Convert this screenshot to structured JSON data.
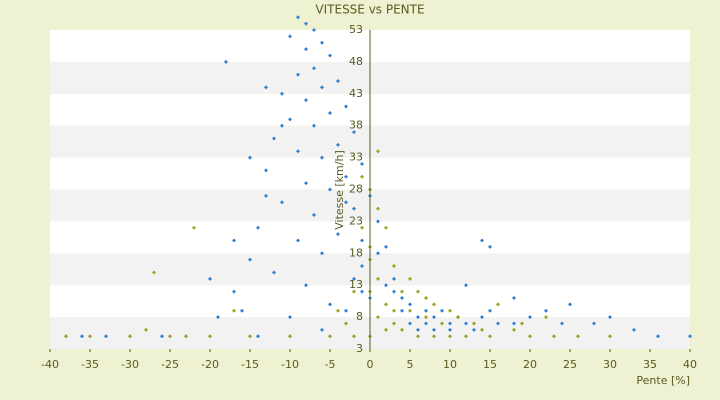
{
  "chart_data": {
    "type": "scatter",
    "title": "VITESSE vs PENTE",
    "x_label": "Pente [%]",
    "y_label": "Vitesse [km/h]",
    "xlim": [
      -40,
      40
    ],
    "xticks": [
      -40,
      -35,
      -30,
      -25,
      -20,
      -15,
      -10,
      -5,
      0,
      5,
      10,
      15,
      20,
      25,
      30,
      35,
      40
    ],
    "ylim": [
      3,
      53
    ],
    "yticks": [
      3,
      8,
      13,
      18,
      23,
      28,
      33,
      38,
      43,
      48,
      53
    ],
    "grid_bands": true,
    "background": "#eef2d2",
    "band_color": "#f2f2f2",
    "axis_color": "#5a5a20",
    "series": [
      {
        "color": "#2f80d0",
        "x": [
          -9,
          -8,
          -7,
          -10,
          -6,
          -8,
          -5,
          -7,
          -9,
          -4,
          -6,
          -11,
          -8,
          -3,
          -5,
          -10,
          -7,
          -2,
          -12,
          -4,
          -9,
          -6,
          -1,
          -13,
          -3,
          -8,
          -5,
          0,
          -11,
          -2,
          -7,
          1,
          -14,
          -4,
          -9,
          2,
          -6,
          -15,
          -1,
          -12,
          3,
          -8,
          -17,
          0,
          -5,
          -16,
          4,
          -10,
          6,
          8,
          10,
          12,
          -3,
          -1,
          1,
          -2,
          3,
          5,
          7,
          9,
          11,
          14,
          16,
          18,
          20,
          22,
          25,
          24,
          28,
          30,
          33,
          36,
          40,
          -18,
          -13,
          -11,
          -15,
          -13,
          -17,
          -20,
          -19,
          -23,
          -30,
          -36,
          -38,
          -33,
          -26,
          6,
          8,
          10,
          13,
          5,
          7,
          15,
          18,
          12,
          15,
          14,
          4,
          2,
          -1,
          -3,
          -6,
          -10,
          -14
        ],
        "values": [
          55,
          54,
          53,
          52,
          51,
          50,
          49,
          47,
          46,
          45,
          44,
          43,
          42,
          41,
          40,
          39,
          38,
          37,
          36,
          35,
          34,
          33,
          32,
          31,
          30,
          29,
          28,
          27,
          26,
          25,
          24,
          23,
          22,
          21,
          20,
          19,
          18,
          17,
          16,
          15,
          14,
          13,
          12,
          11,
          10,
          9,
          9,
          8,
          8,
          8,
          7,
          7,
          26,
          20,
          18,
          14,
          12,
          10,
          9,
          9,
          8,
          8,
          7,
          7,
          8,
          9,
          10,
          7,
          7,
          8,
          6,
          5,
          5,
          48,
          44,
          38,
          33,
          27,
          20,
          14,
          8,
          5,
          5,
          5,
          5,
          5,
          5,
          6,
          6,
          6,
          6,
          7,
          7,
          9,
          11,
          13,
          19,
          20,
          11,
          13,
          12,
          9,
          6,
          5,
          5
        ]
      },
      {
        "color": "#a3a020",
        "x": [
          0,
          -2,
          -5,
          -10,
          -15,
          -20,
          -25,
          -30,
          -35,
          -38,
          2,
          4,
          6,
          8,
          10,
          12,
          15,
          18,
          20,
          23,
          26,
          30,
          1,
          3,
          5,
          7,
          9,
          11,
          2,
          4,
          1,
          3,
          0,
          2,
          1,
          0,
          -1,
          1,
          0,
          -2,
          -4,
          -3,
          6,
          8,
          14,
          16,
          19,
          22,
          -27,
          -22,
          -17,
          -28,
          -23,
          5,
          7,
          10,
          13,
          3,
          0,
          -1
        ],
        "values": [
          5,
          5,
          5,
          5,
          5,
          5,
          5,
          5,
          5,
          5,
          6,
          6,
          5,
          5,
          5,
          5,
          5,
          6,
          5,
          5,
          5,
          5,
          8,
          9,
          9,
          8,
          7,
          8,
          10,
          12,
          14,
          16,
          19,
          22,
          25,
          28,
          30,
          34,
          17,
          12,
          9,
          7,
          12,
          10,
          6,
          10,
          7,
          8,
          15,
          22,
          9,
          6,
          5,
          14,
          11,
          9,
          7,
          7,
          12,
          22
        ]
      }
    ]
  }
}
